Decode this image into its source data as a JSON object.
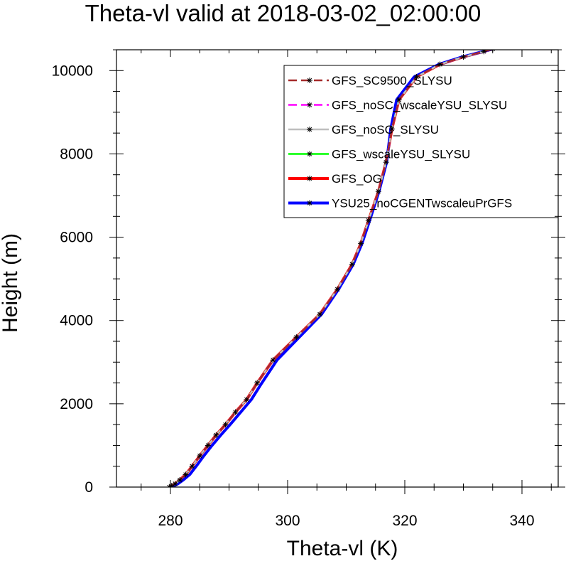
{
  "chart_data": {
    "type": "line",
    "title": "Theta-vl valid at 2018-03-02_02:00:00",
    "xlabel": "Theta-vl (K)",
    "ylabel": "Height (m)",
    "xlim": [
      270,
      350
    ],
    "ylim": [
      0,
      10500
    ],
    "x_ticks": [
      280,
      300,
      320,
      340
    ],
    "y_ticks": [
      0,
      2000,
      4000,
      6000,
      8000,
      10000
    ],
    "grid": false,
    "legend_position": "top-right",
    "series": [
      {
        "name": "GFS_SC9500_SLYSU",
        "color": "#a52a2a",
        "dash": "dash",
        "width": 2.5,
        "x": [
          279.8,
          280.2,
          280.8,
          281.6,
          282.6,
          283.7,
          285.0,
          286.4,
          287.8,
          289.4,
          291.1,
          293.0,
          294.8,
          297.5,
          301.5,
          305.5,
          308.5,
          311.0,
          312.5,
          313.8,
          315.5,
          316.8,
          317.8,
          319.0,
          322.0,
          326.0,
          330.0,
          333.5,
          335.0
        ],
        "y": [
          0,
          30,
          80,
          170,
          300,
          500,
          750,
          1000,
          1250,
          1500,
          1800,
          2100,
          2500,
          3050,
          3600,
          4150,
          4750,
          5350,
          5850,
          6400,
          7100,
          7800,
          8600,
          9300,
          9850,
          10150,
          10330,
          10460,
          10520
        ]
      },
      {
        "name": "GFS_noSC_wscaleYSU_SLYSU",
        "color": "#ff00ff",
        "dash": "dash",
        "width": 2.5,
        "x": [
          279.8,
          280.2,
          280.8,
          281.6,
          282.6,
          283.7,
          285.0,
          286.4,
          287.8,
          289.4,
          291.1,
          293.0,
          294.8,
          297.5,
          301.5,
          305.5,
          308.5,
          311.0,
          312.5,
          313.8,
          315.5,
          316.8,
          317.8,
          319.0,
          322.0,
          326.0,
          330.0,
          333.5,
          335.0
        ],
        "y": [
          0,
          30,
          80,
          170,
          300,
          500,
          750,
          1000,
          1250,
          1500,
          1800,
          2100,
          2500,
          3050,
          3600,
          4150,
          4750,
          5350,
          5850,
          6400,
          7100,
          7800,
          8600,
          9300,
          9850,
          10150,
          10330,
          10460,
          10520
        ]
      },
      {
        "name": "GFS_noSC_SLYSU",
        "color": "#bebebe",
        "dash": "solid",
        "width": 2.5,
        "x": [
          279.8,
          280.2,
          280.8,
          281.6,
          282.6,
          283.7,
          285.0,
          286.4,
          287.8,
          289.4,
          291.1,
          293.0,
          294.8,
          297.5,
          301.5,
          305.5,
          308.5,
          311.0,
          312.5,
          313.8,
          315.5,
          316.8,
          317.8,
          319.0,
          322.0,
          326.0,
          330.0,
          333.5,
          335.0
        ],
        "y": [
          0,
          30,
          80,
          170,
          300,
          500,
          750,
          1000,
          1250,
          1500,
          1800,
          2100,
          2500,
          3050,
          3600,
          4150,
          4750,
          5350,
          5850,
          6400,
          7100,
          7800,
          8600,
          9300,
          9850,
          10150,
          10330,
          10460,
          10520
        ]
      },
      {
        "name": "GFS_wscaleYSU_SLYSU",
        "color": "#00ff00",
        "dash": "solid",
        "width": 2.5,
        "x": [
          279.8,
          280.2,
          280.8,
          281.6,
          282.6,
          283.7,
          285.0,
          286.4,
          287.8,
          289.4,
          291.1,
          293.0,
          294.8,
          297.5,
          301.5,
          305.5,
          308.5,
          311.0,
          312.5,
          313.8,
          315.5,
          316.8,
          317.8,
          319.0,
          322.0,
          326.0,
          330.0,
          333.5,
          335.0
        ],
        "y": [
          0,
          30,
          80,
          170,
          300,
          500,
          750,
          1000,
          1250,
          1500,
          1800,
          2100,
          2500,
          3050,
          3600,
          4150,
          4750,
          5350,
          5850,
          6400,
          7100,
          7800,
          8600,
          9300,
          9850,
          10150,
          10330,
          10460,
          10520
        ]
      },
      {
        "name": "GFS_OG",
        "color": "#ff0000",
        "dash": "solid",
        "width": 4,
        "x": [
          279.8,
          280.2,
          280.8,
          281.6,
          282.6,
          283.7,
          285.0,
          286.4,
          287.8,
          289.4,
          291.1,
          293.0,
          294.8,
          297.5,
          301.5,
          305.5,
          308.5,
          311.0,
          312.5,
          313.8,
          315.5,
          316.8,
          317.8,
          319.0,
          322.0,
          326.0,
          330.0,
          333.5,
          335.0
        ],
        "y": [
          0,
          30,
          80,
          170,
          300,
          500,
          750,
          1000,
          1250,
          1500,
          1800,
          2100,
          2500,
          3050,
          3600,
          4150,
          4750,
          5350,
          5850,
          6400,
          7100,
          7800,
          8600,
          9300,
          9850,
          10150,
          10330,
          10460,
          10520
        ]
      },
      {
        "name": "YSU25_noCGENTwscaleuPrGFS",
        "color": "#0000ff",
        "dash": "solid",
        "width": 4,
        "x": [
          280.0,
          280.6,
          281.3,
          282.2,
          283.3,
          284.4,
          285.7,
          287.1,
          288.6,
          290.2,
          292.0,
          293.8,
          295.6,
          298.2,
          302.0,
          305.8,
          308.7,
          311.2,
          312.7,
          314.0,
          315.6,
          316.9,
          317.6,
          318.6,
          321.6,
          325.8,
          329.8,
          333.4,
          335.0
        ],
        "y": [
          0,
          30,
          80,
          170,
          300,
          500,
          750,
          1000,
          1250,
          1500,
          1800,
          2100,
          2500,
          3050,
          3600,
          4150,
          4750,
          5350,
          5850,
          6400,
          7100,
          7800,
          8600,
          9300,
          9850,
          10150,
          10330,
          10460,
          10520
        ]
      }
    ]
  }
}
